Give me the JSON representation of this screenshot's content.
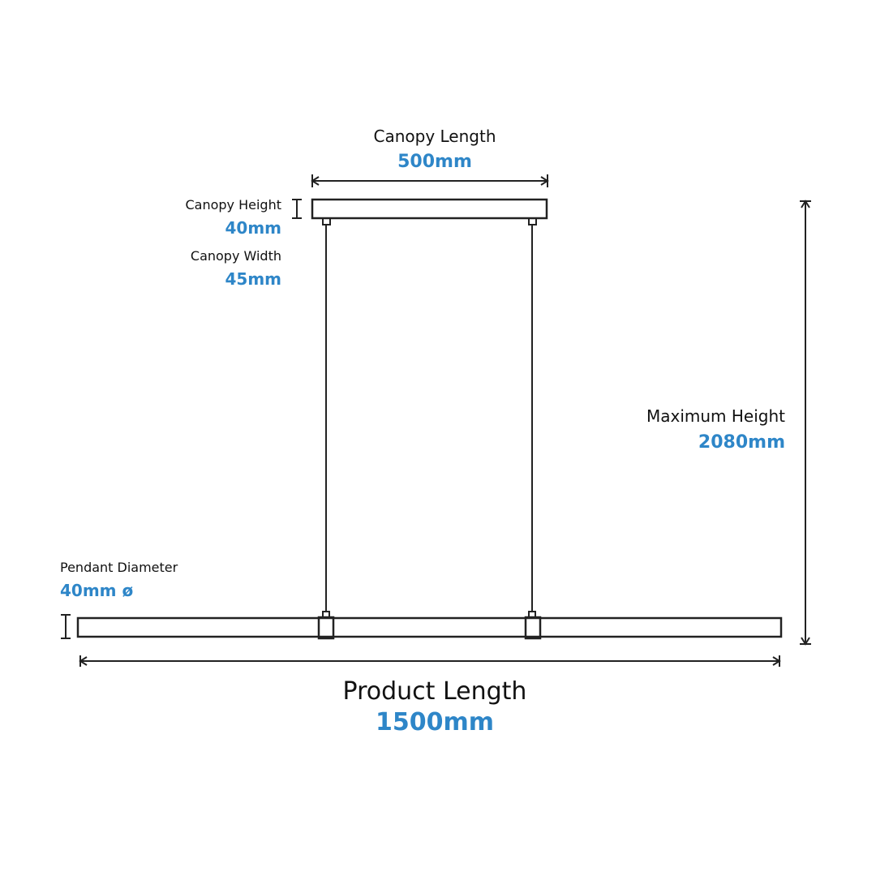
{
  "dimensions": [
    {
      "label": "Canopy Length",
      "value": "500mm"
    },
    {
      "label": "Canopy Height",
      "value": "40mm"
    },
    {
      "label": "Canopy Width",
      "value": "45mm"
    },
    {
      "label": "Maximum Height",
      "value": "2080mm"
    },
    {
      "label": "Pendant Diameter",
      "value": "40mm ø"
    },
    {
      "label": "Product Length",
      "value": "1500mm"
    }
  ]
}
